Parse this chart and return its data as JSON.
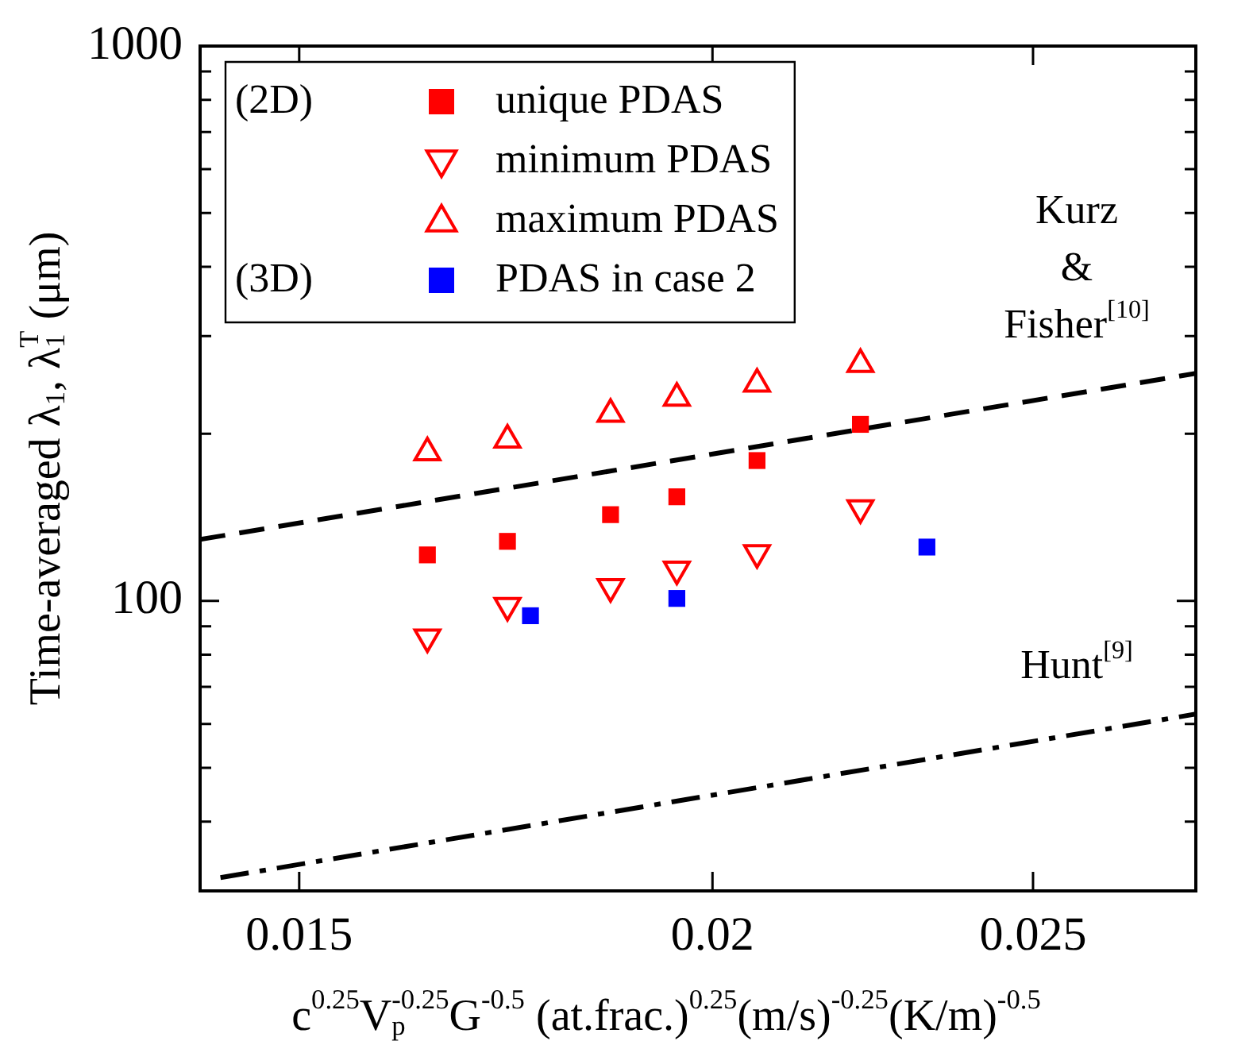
{
  "chart_data": {
    "type": "scatter",
    "xlabel": "c$^{0.25}$V$_{p}$$^{-0.25}$G$^{-0.5}$ (at.frac.)$^{0.25}$(m/s)$^{-0.25}$(K/m)$^{-0.5}$",
    "ylabel": "Time-averaged λ$_{1}$, λ$_{1}$$^{T}$ (μm)",
    "log": "xy",
    "grid": false,
    "legend": "top left",
    "xlim": [
      0.014,
      0.028
    ],
    "xticks": [
      0.015,
      0.02,
      0.025
    ],
    "ylim": [
      30,
      1000
    ],
    "yticks": [
      {
        "value": 30,
        "label": null
      },
      {
        "value": 40,
        "label": null
      },
      {
        "value": 50,
        "label": null
      },
      {
        "value": 60,
        "label": null
      },
      {
        "value": 70,
        "label": null
      },
      {
        "value": 80,
        "label": null
      },
      {
        "value": 90,
        "label": null
      },
      100,
      {
        "value": 200,
        "label": null
      },
      {
        "value": 300,
        "label": null
      },
      {
        "value": 400,
        "label": null
      },
      {
        "value": 500,
        "label": null
      },
      {
        "value": 600,
        "label": null
      },
      {
        "value": 700,
        "label": null
      },
      {
        "value": 800,
        "label": null
      },
      {
        "value": 900,
        "label": null
      },
      1000
    ],
    "series": [
      {
        "name": "unique PDAS",
        "color": "#ff0000",
        "marker": "square",
        "x": [
          0.0164,
          0.01734,
          0.01863,
          0.01951,
          0.02063,
          0.02217
        ],
        "values": [
          121,
          128,
          143,
          154,
          179,
          208
        ]
      },
      {
        "name": "minimum PDAS",
        "color": "#ff0000",
        "marker": "triangle-down",
        "x": [
          0.0164,
          0.01734,
          0.01863,
          0.01951,
          0.02063,
          0.02217
        ],
        "values": [
          86,
          98,
          106,
          114,
          122,
          147
        ]
      },
      {
        "name": "maximum PDAS",
        "color": "#ff0000",
        "marker": "triangle",
        "x": [
          0.0164,
          0.01734,
          0.01863,
          0.01951,
          0.02063,
          0.02217
        ],
        "values": [
          185,
          195,
          217,
          232,
          246,
          267
        ]
      },
      {
        "name": "PDAS in case 2",
        "color": "#0000ff",
        "marker": "square",
        "x": [
          0.01762,
          0.01951,
          0.02322
        ],
        "values": [
          94,
          101,
          125
        ]
      },
      {
        "name": "Kurz & Fisher$^{[10]}$",
        "type": "line",
        "color": "#000000",
        "line_style": "dashed",
        "marker": "none",
        "x": [
          0.014,
          0.028
        ],
        "values": [
          129,
          257
        ]
      },
      {
        "name": "Hunt$^{[9]}$",
        "type": "line",
        "color": "#000000",
        "line_style": "dashdot",
        "marker": "none",
        "x": [
          0.0142,
          0.028
        ],
        "values": [
          31.7,
          62.5
        ]
      }
    ],
    "annotations": [
      "(2D)",
      "(3D)"
    ]
  }
}
